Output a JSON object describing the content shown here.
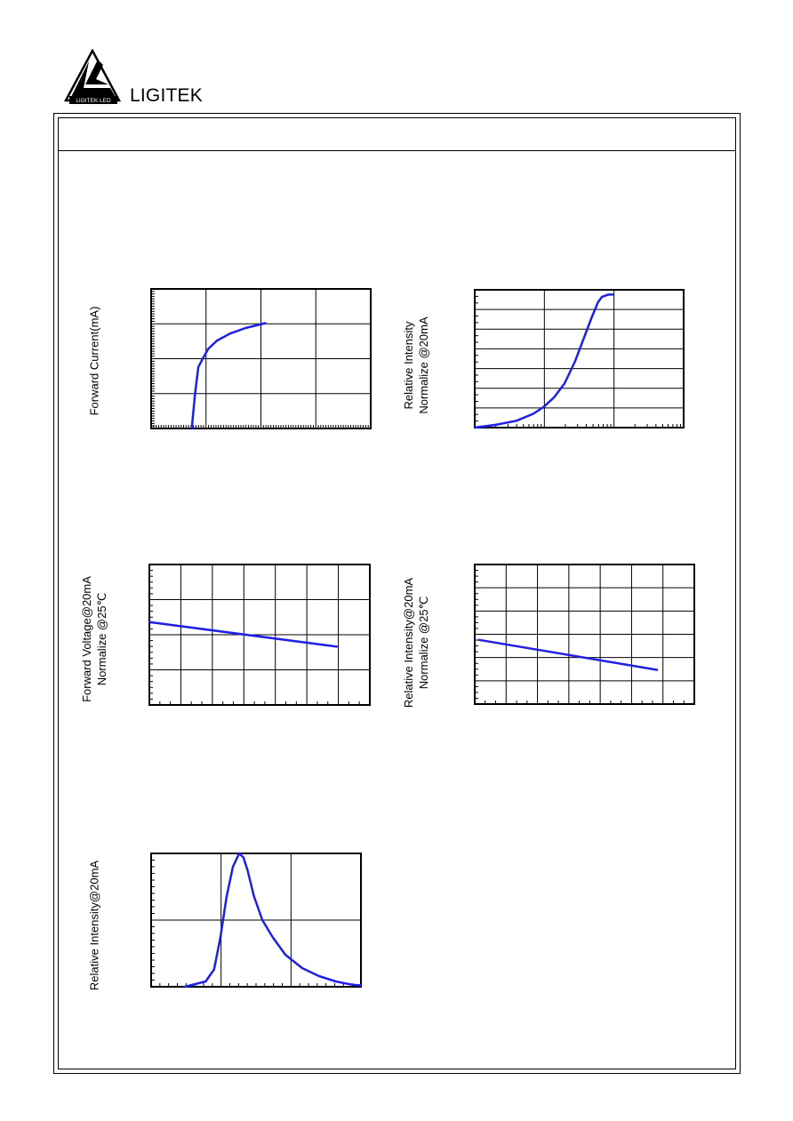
{
  "header": {
    "brand_name": "LIGITEK",
    "logo_text": "LIGITEK LED"
  },
  "colors": {
    "curve": "#1f1fe6",
    "grid": "#000000"
  },
  "chart_data": [
    {
      "type": "line",
      "ylabel": "Forward Current(mA)",
      "xlim": [
        0,
        1
      ],
      "ylim": [
        0,
        1
      ],
      "grid": true,
      "series": [
        {
          "x": [
            0.185,
            0.2,
            0.215,
            0.235,
            0.26,
            0.3,
            0.36,
            0.43,
            0.52
          ],
          "y": [
            0.0,
            0.25,
            0.44,
            0.5,
            0.57,
            0.63,
            0.68,
            0.72,
            0.755
          ]
        }
      ]
    },
    {
      "type": "line",
      "ylabel_lines": [
        "Relative Intensity",
        "Normalize @20mA"
      ],
      "xlim": [
        0,
        1
      ],
      "ylim": [
        0,
        1
      ],
      "grid": true,
      "series": [
        {
          "x": [
            0.0,
            0.1,
            0.2,
            0.28,
            0.33,
            0.38,
            0.43,
            0.48,
            0.52,
            0.56,
            0.59,
            0.61,
            0.64,
            0.66
          ],
          "y": [
            0.0,
            0.02,
            0.05,
            0.1,
            0.15,
            0.22,
            0.32,
            0.48,
            0.64,
            0.8,
            0.91,
            0.95,
            0.965,
            0.965
          ]
        }
      ]
    },
    {
      "type": "line",
      "ylabel_lines": [
        "Forward Voltage@20mA",
        "Normalize @25℃"
      ],
      "xlim": [
        0,
        1
      ],
      "ylim": [
        0,
        1
      ],
      "grid": true,
      "series": [
        {
          "x": [
            0.0,
            0.85
          ],
          "y": [
            0.59,
            0.415
          ]
        }
      ]
    },
    {
      "type": "line",
      "ylabel_lines": [
        "Relative Intensity@20mA",
        "Normalize @25℃"
      ],
      "xlim": [
        0,
        1
      ],
      "ylim": [
        0,
        1
      ],
      "grid": true,
      "series": [
        {
          "x": [
            0.02,
            0.83
          ],
          "y": [
            0.46,
            0.245
          ]
        }
      ]
    },
    {
      "type": "line",
      "ylabel": "Relative Intensity@20mA",
      "xlim": [
        0,
        1
      ],
      "ylim": [
        0,
        1
      ],
      "grid": true,
      "series": [
        {
          "x": [
            0.16,
            0.26,
            0.3,
            0.33,
            0.36,
            0.39,
            0.42,
            0.44,
            0.46,
            0.49,
            0.53,
            0.58,
            0.64,
            0.72,
            0.8,
            0.88,
            0.96,
            1.0
          ],
          "y": [
            0.0,
            0.04,
            0.13,
            0.37,
            0.68,
            0.9,
            1.0,
            0.97,
            0.87,
            0.68,
            0.5,
            0.37,
            0.24,
            0.14,
            0.08,
            0.04,
            0.015,
            0.01
          ]
        }
      ]
    }
  ]
}
